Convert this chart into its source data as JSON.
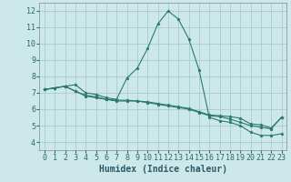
{
  "xlabel": "Humidex (Indice chaleur)",
  "background_color": "#cde8e8",
  "grid_color": "#aacccc",
  "line_color": "#2a7a6a",
  "xlim": [
    -0.5,
    23.5
  ],
  "ylim": [
    3.5,
    12.5
  ],
  "xticks": [
    0,
    1,
    2,
    3,
    4,
    5,
    6,
    7,
    8,
    9,
    10,
    11,
    12,
    13,
    14,
    15,
    16,
    17,
    18,
    19,
    20,
    21,
    22,
    23
  ],
  "yticks": [
    4,
    5,
    6,
    7,
    8,
    9,
    10,
    11,
    12
  ],
  "line1_x": [
    0,
    1,
    2,
    3,
    4,
    5,
    6,
    7,
    8,
    9,
    10,
    11,
    12,
    13,
    14,
    15,
    16,
    17,
    18,
    19,
    20,
    21,
    22,
    23
  ],
  "line1_y": [
    7.2,
    7.3,
    7.4,
    7.5,
    7.0,
    6.9,
    6.7,
    6.6,
    7.9,
    8.5,
    9.7,
    11.2,
    12.0,
    11.5,
    10.3,
    8.4,
    5.5,
    5.3,
    5.2,
    5.0,
    4.6,
    4.4,
    4.4,
    4.5
  ],
  "line2_x": [
    0,
    1,
    2,
    3,
    4,
    5,
    6,
    7,
    8,
    9,
    10,
    11,
    12,
    13,
    14,
    15,
    16,
    17,
    18,
    19,
    20,
    21,
    22,
    23
  ],
  "line2_y": [
    7.2,
    7.3,
    7.4,
    7.1,
    6.8,
    6.7,
    6.6,
    6.5,
    6.5,
    6.5,
    6.4,
    6.3,
    6.2,
    6.1,
    6.0,
    5.8,
    5.6,
    5.55,
    5.4,
    5.2,
    5.0,
    4.9,
    4.8,
    5.5
  ],
  "line3_x": [
    0,
    1,
    2,
    3,
    4,
    5,
    6,
    7,
    8,
    9,
    10,
    11,
    12,
    13,
    14,
    15,
    16,
    17,
    18,
    19,
    20,
    21,
    22,
    23
  ],
  "line3_y": [
    7.2,
    7.3,
    7.4,
    7.1,
    6.85,
    6.75,
    6.6,
    6.55,
    6.55,
    6.5,
    6.45,
    6.35,
    6.25,
    6.15,
    6.05,
    5.85,
    5.65,
    5.6,
    5.55,
    5.45,
    5.1,
    5.05,
    4.85,
    5.5
  ],
  "tick_color": "#2a6a6a",
  "xlabel_color": "#2a5a6a",
  "tick_fontsize": 6,
  "xlabel_fontsize": 7
}
